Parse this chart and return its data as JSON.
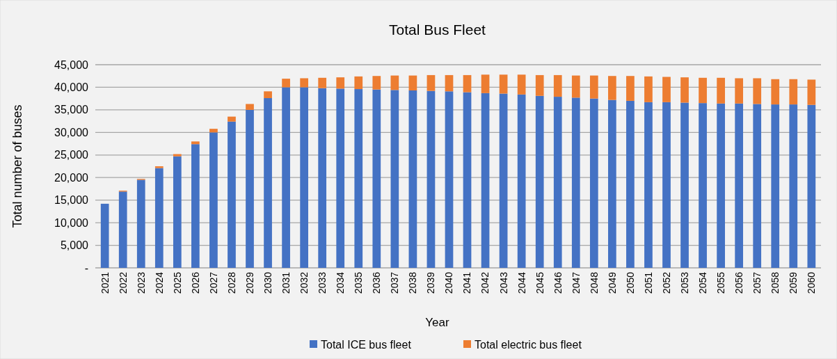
{
  "chart_data": {
    "type": "bar",
    "title": "Total Bus Fleet",
    "xlabel": "Year",
    "ylabel": "Total number of buses",
    "stacked": true,
    "grid": "y",
    "legend": "bottom",
    "categories": [
      "2021",
      "2022",
      "2023",
      "2024",
      "2025",
      "2026",
      "2027",
      "2028",
      "2029",
      "2030",
      "2031",
      "2032",
      "2033",
      "2034",
      "2035",
      "2036",
      "2037",
      "2038",
      "2039",
      "2040",
      "2041",
      "2042",
      "2043",
      "2044",
      "2045",
      "2046",
      "2047",
      "2048",
      "2049",
      "2050",
      "2051",
      "2052",
      "2053",
      "2054",
      "2055",
      "2056",
      "2057",
      "2058",
      "2059",
      "2060"
    ],
    "ylim": [
      0,
      45000
    ],
    "yticks": [
      {
        "value": 0,
        "label": "-"
      },
      {
        "value": 5000,
        "label": "5,000"
      },
      {
        "value": 10000,
        "label": "10,000"
      },
      {
        "value": 15000,
        "label": "15,000"
      },
      {
        "value": 20000,
        "label": "20,000"
      },
      {
        "value": 25000,
        "label": "25,000"
      },
      {
        "value": 30000,
        "label": "30,000"
      },
      {
        "value": 35000,
        "label": "35,000"
      },
      {
        "value": 40000,
        "label": "40,000"
      },
      {
        "value": 45000,
        "label": "45,000"
      }
    ],
    "series": [
      {
        "name": "Total ICE bus fleet",
        "color": "#4472c4",
        "values": [
          14200,
          16900,
          19500,
          22100,
          24700,
          27400,
          30000,
          32400,
          35000,
          37600,
          40000,
          40000,
          39800,
          39700,
          39600,
          39500,
          39400,
          39300,
          39200,
          39100,
          38900,
          38700,
          38600,
          38400,
          38100,
          37900,
          37700,
          37500,
          37200,
          37000,
          36700,
          36700,
          36600,
          36500,
          36400,
          36400,
          36300,
          36200,
          36200,
          36100
        ]
      },
      {
        "name": "Total electric bus fleet",
        "color": "#ed7d31",
        "values": [
          0,
          200,
          200,
          400,
          500,
          600,
          800,
          1100,
          1300,
          1500,
          1900,
          2000,
          2300,
          2500,
          2800,
          3000,
          3200,
          3300,
          3500,
          3600,
          3800,
          4100,
          4200,
          4400,
          4600,
          4800,
          4900,
          5100,
          5300,
          5500,
          5700,
          5600,
          5600,
          5600,
          5700,
          5600,
          5700,
          5600,
          5600,
          5600
        ]
      }
    ]
  }
}
